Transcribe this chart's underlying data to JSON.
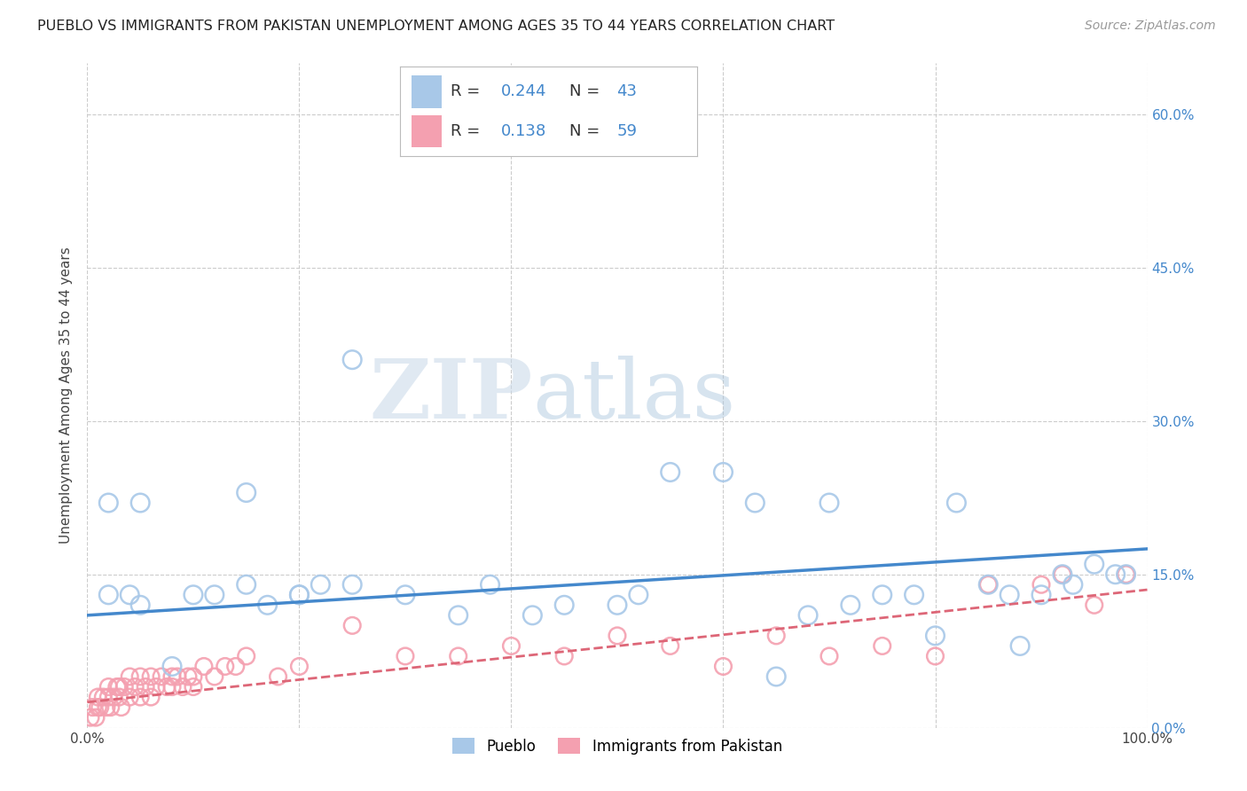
{
  "title": "PUEBLO VS IMMIGRANTS FROM PAKISTAN UNEMPLOYMENT AMONG AGES 35 TO 44 YEARS CORRELATION CHART",
  "source": "Source: ZipAtlas.com",
  "ylabel": "Unemployment Among Ages 35 to 44 years",
  "xlim": [
    0,
    100
  ],
  "ylim": [
    0,
    65
  ],
  "xticks": [
    0,
    20,
    40,
    60,
    80,
    100
  ],
  "xticklabels": [
    "0.0%",
    "",
    "",
    "",
    "",
    "100.0%"
  ],
  "yticks": [
    0,
    15,
    30,
    45,
    60
  ],
  "yticklabels": [
    "0.0%",
    "15.0%",
    "30.0%",
    "45.0%",
    "60.0%"
  ],
  "pueblo_R": "0.244",
  "pueblo_N": "43",
  "pakistan_R": "0.138",
  "pakistan_N": "59",
  "pueblo_color": "#a8c8e8",
  "pakistan_color": "#f4a0b0",
  "pueblo_line_color": "#4488cc",
  "pakistan_line_color": "#dd6677",
  "pueblo_scatter_x": [
    2,
    4,
    5,
    10,
    12,
    15,
    17,
    20,
    22,
    25,
    30,
    35,
    38,
    42,
    45,
    50,
    52,
    55,
    60,
    63,
    65,
    68,
    70,
    72,
    75,
    78,
    80,
    82,
    85,
    87,
    88,
    90,
    92,
    93,
    95,
    97,
    98,
    2,
    5,
    8,
    15,
    20,
    25
  ],
  "pueblo_scatter_y": [
    22,
    13,
    22,
    13,
    13,
    14,
    12,
    13,
    14,
    14,
    13,
    11,
    14,
    11,
    12,
    12,
    13,
    25,
    25,
    22,
    5,
    11,
    22,
    12,
    13,
    13,
    9,
    22,
    14,
    13,
    8,
    13,
    15,
    14,
    16,
    15,
    15,
    13,
    12,
    6,
    23,
    13,
    36
  ],
  "pakistan_scatter_x": [
    0.3,
    0.5,
    0.8,
    1,
    1,
    1.2,
    1.5,
    1.8,
    2,
    2,
    2.2,
    2.5,
    2.8,
    3,
    3,
    3.2,
    3.5,
    4,
    4,
    4.5,
    5,
    5,
    5.5,
    6,
    6,
    6.5,
    7,
    7.5,
    8,
    8,
    8.5,
    9,
    9.5,
    10,
    10,
    11,
    12,
    13,
    14,
    15,
    18,
    20,
    25,
    30,
    35,
    40,
    45,
    50,
    55,
    60,
    65,
    70,
    75,
    80,
    85,
    90,
    92,
    95,
    98
  ],
  "pakistan_scatter_y": [
    1,
    2,
    1,
    2,
    3,
    2,
    3,
    2,
    4,
    3,
    2,
    3,
    4,
    3,
    4,
    2,
    4,
    5,
    3,
    4,
    3,
    5,
    4,
    5,
    3,
    4,
    5,
    4,
    5,
    4,
    5,
    4,
    5,
    5,
    4,
    6,
    5,
    6,
    6,
    7,
    5,
    6,
    10,
    7,
    7,
    8,
    7,
    9,
    8,
    6,
    9,
    7,
    8,
    7,
    14,
    14,
    15,
    12,
    15
  ],
  "pueblo_trend_x": [
    0,
    100
  ],
  "pueblo_trend_y": [
    11.0,
    17.5
  ],
  "pakistan_trend_x": [
    0,
    100
  ],
  "pakistan_trend_y": [
    2.5,
    13.5
  ],
  "background_color": "#ffffff",
  "grid_color": "#cccccc",
  "legend_labels": [
    "Pueblo",
    "Immigrants from Pakistan"
  ]
}
